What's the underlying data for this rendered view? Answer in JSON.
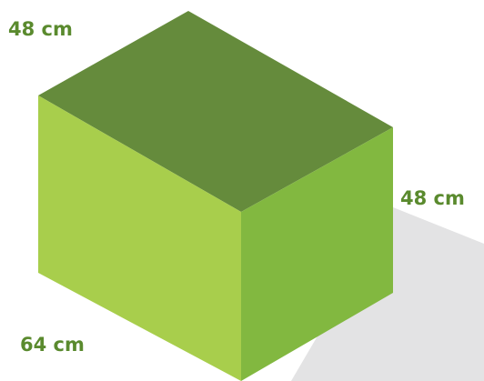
{
  "labels": {
    "top_left": "48 cm",
    "right": "48 cm",
    "bottom_left": "64 cm"
  },
  "colors": {
    "label_text": "#5a8a2e",
    "top_face": "#658b3c",
    "left_face": "#a8ce4c",
    "right_face": "#82b840",
    "shadow": "#e3e3e4"
  }
}
